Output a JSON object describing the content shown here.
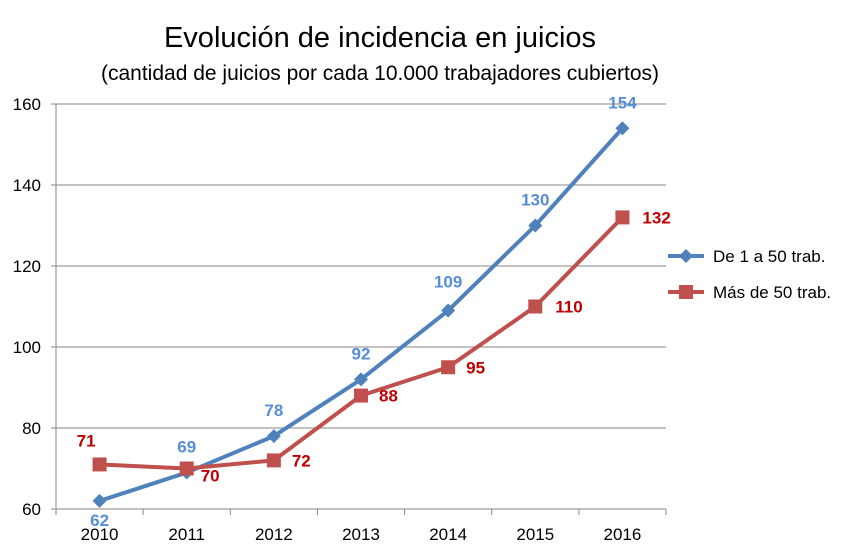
{
  "chart_data": {
    "type": "line",
    "title": "Evolución de incidencia en juicios",
    "subtitle": "(cantidad de juicios por cada 10.000 trabajadores cubiertos)",
    "xlabel": "",
    "ylabel": "",
    "categories": [
      "2010",
      "2011",
      "2012",
      "2013",
      "2014",
      "2015",
      "2016"
    ],
    "ylim": [
      60,
      160
    ],
    "yticks": [
      60,
      80,
      100,
      120,
      140,
      160
    ],
    "grid": true,
    "legend_position": "right",
    "series": [
      {
        "name": "De 1 a 50 trab.",
        "values": [
          62,
          69,
          78,
          92,
          109,
          130,
          154
        ],
        "labels": [
          "62",
          "69",
          "78",
          "92",
          "109",
          "130",
          "154"
        ],
        "color": "#4f81bd",
        "label_color": "#558ed5",
        "marker": "diamond"
      },
      {
        "name": "Más de 50 trab.",
        "values": [
          71,
          70,
          72,
          88,
          95,
          110,
          132
        ],
        "labels": [
          "71",
          "70",
          "72",
          "88",
          "95",
          "110",
          "132"
        ],
        "color": "#c0504d",
        "label_color": "#c00000",
        "marker": "square"
      }
    ]
  }
}
